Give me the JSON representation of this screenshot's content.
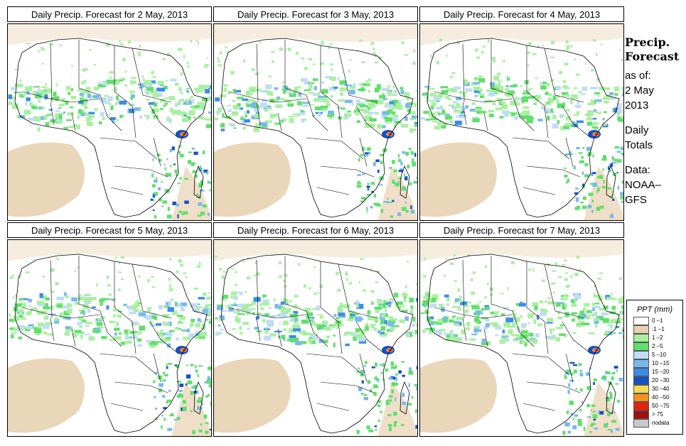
{
  "panels": [
    {
      "title": "Daily Precip. Forecast for  2 May, 2013"
    },
    {
      "title": "Daily Precip. Forecast for  3 May, 2013"
    },
    {
      "title": "Daily Precip. Forecast for  4 May, 2013"
    },
    {
      "title": "Daily Precip. Forecast for  5 May, 2013"
    },
    {
      "title": "Daily Precip. Forecast for  6 May, 2013"
    },
    {
      "title": "Daily Precip. Forecast for  7 May, 2013"
    }
  ],
  "side": {
    "title_line1": "Precip.",
    "title_line2": "Forecast",
    "asof_line1": "as of:",
    "asof_line2": "2 May",
    "asof_line3": "2013",
    "daily_line1": "Daily",
    "daily_line2": "Totals",
    "data_line1": "Data:",
    "data_line2": "NOAA–",
    "data_line3": "GFS"
  },
  "legend": {
    "title": "PPT (mm)",
    "items": [
      {
        "label": "0 –1",
        "color": "#ffffff"
      },
      {
        "label": ".1 –1",
        "color": "#e8d2b0"
      },
      {
        "label": "1 –2",
        "color": "#a8f0a0"
      },
      {
        "label": "2 –5",
        "color": "#5ee06a"
      },
      {
        "label": "5 –10",
        "color": "#c0dcf8"
      },
      {
        "label": "10 –15",
        "color": "#78b8f0"
      },
      {
        "label": "15 –20",
        "color": "#3c8ce8"
      },
      {
        "label": "20 –30",
        "color": "#1450c8"
      },
      {
        "label": "30 –40",
        "color": "#f8d850"
      },
      {
        "label": "40 –50",
        "color": "#f89020"
      },
      {
        "label": "50 –75",
        "color": "#e82010"
      },
      {
        "label": "> 75",
        "color": "#a01010"
      },
      {
        "label": "nodata",
        "color": "#c8c8c8"
      }
    ]
  }
}
